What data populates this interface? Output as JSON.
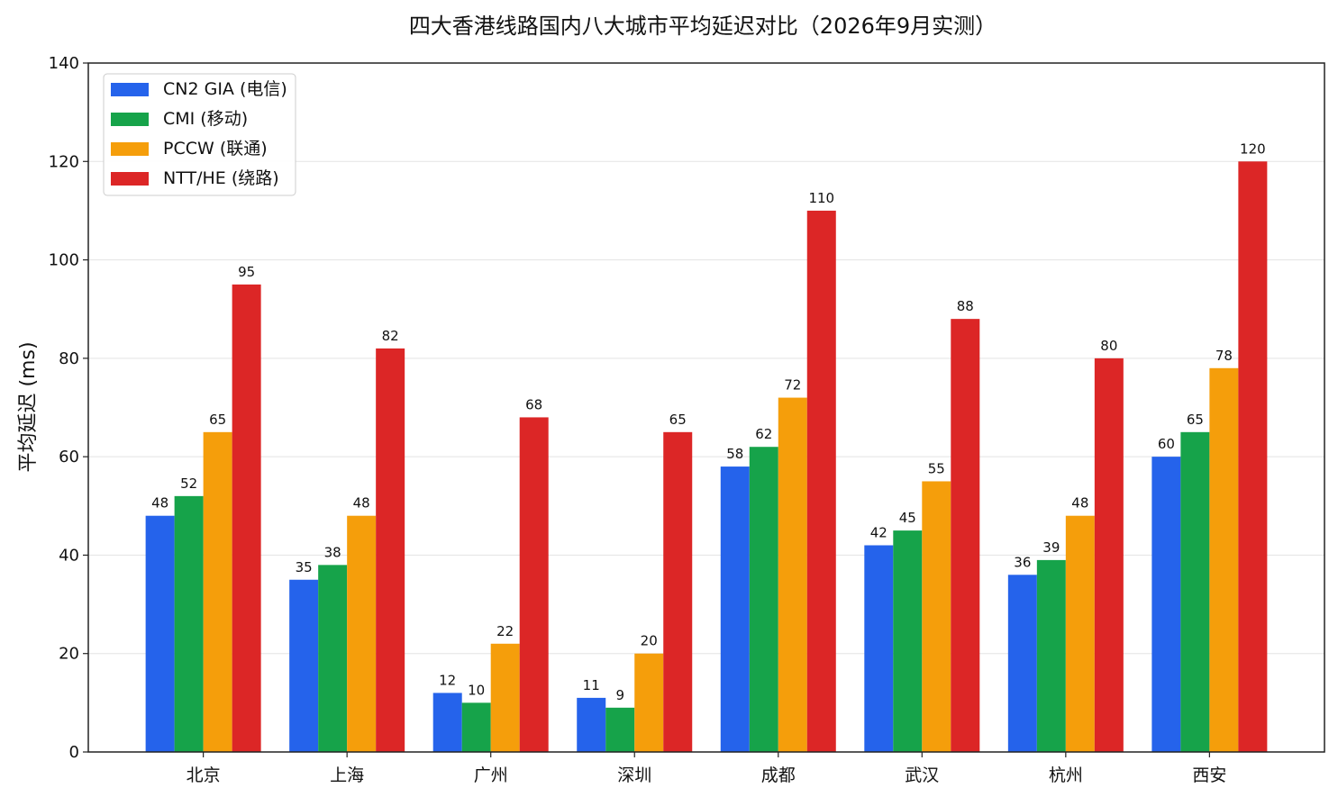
{
  "chart_data": {
    "type": "bar",
    "title": "四大香港线路国内八大城市平均延迟对比（2026年9月实测）",
    "ylabel": "平均延迟 (ms)",
    "xlabel": "",
    "ylim": [
      0,
      140
    ],
    "yticks": [
      0,
      20,
      40,
      60,
      80,
      100,
      120,
      140
    ],
    "grid": "horizontal",
    "legend_position": "top-left",
    "categories": [
      "北京",
      "上海",
      "广州",
      "深圳",
      "成都",
      "武汉",
      "杭州",
      "西安"
    ],
    "series": [
      {
        "name": "CN2 GIA (电信)",
        "color": "#2563eb",
        "values": [
          48,
          35,
          12,
          11,
          58,
          42,
          36,
          60
        ]
      },
      {
        "name": "CMI (移动)",
        "color": "#16a34a",
        "values": [
          52,
          38,
          10,
          9,
          62,
          45,
          39,
          65
        ]
      },
      {
        "name": "PCCW (联通)",
        "color": "#f59e0b",
        "values": [
          65,
          48,
          22,
          20,
          72,
          55,
          48,
          78
        ]
      },
      {
        "name": "NTT/HE (绕路)",
        "color": "#dc2626",
        "values": [
          95,
          82,
          68,
          65,
          110,
          88,
          80,
          120
        ]
      }
    ]
  }
}
